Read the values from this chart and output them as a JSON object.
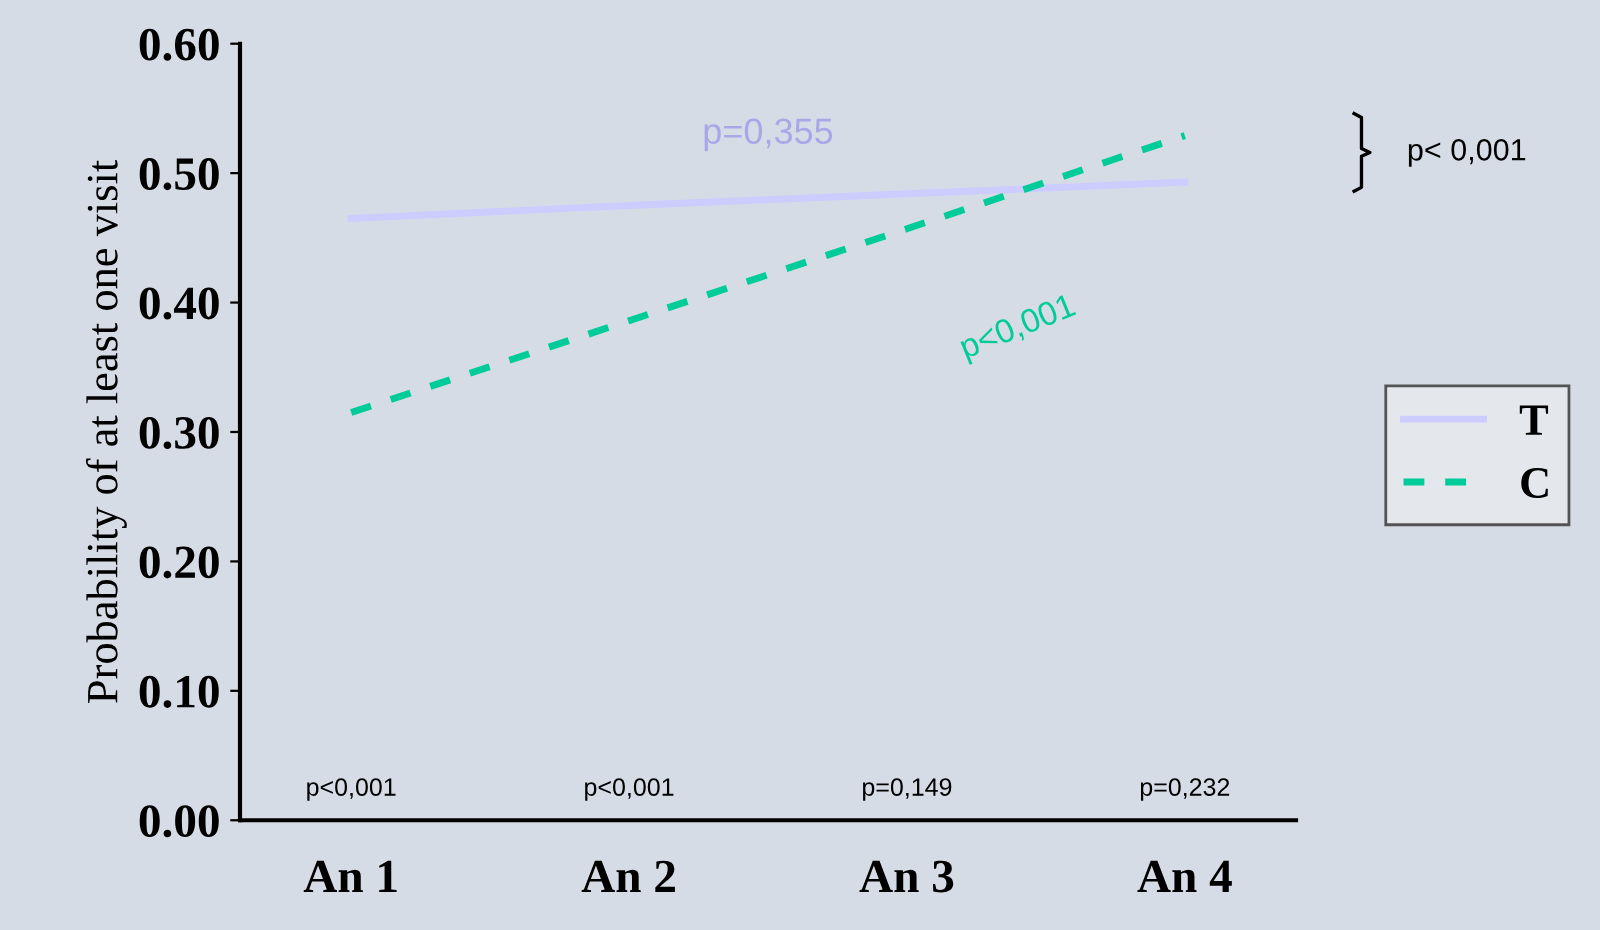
{
  "chart_data": {
    "type": "line",
    "ylabel": "Probability of at least one visit",
    "categories": [
      "An 1",
      "An 2",
      "An 3",
      "An 4"
    ],
    "series": [
      {
        "name": "T",
        "color": "#ccccff",
        "values": [
          0.465,
          0.475,
          0.484,
          0.493
        ],
        "line_style": "solid"
      },
      {
        "name": "C",
        "color": "#00cc99",
        "values": [
          0.315,
          0.386,
          0.457,
          0.529
        ],
        "line_style": "dashed"
      }
    ],
    "ylim": [
      0,
      0.6
    ],
    "yticks": [
      {
        "value": 0,
        "label": "0.00"
      },
      {
        "value": 0.1,
        "label": "0.10"
      },
      {
        "value": 0.2,
        "label": "0.20"
      },
      {
        "value": 0.3,
        "label": "0.30"
      },
      {
        "value": 0.4,
        "label": "0.40"
      },
      {
        "value": 0.5,
        "label": "0.50"
      },
      {
        "value": 0.6,
        "label": "0.60"
      }
    ],
    "legend": "right",
    "grid": false,
    "marker": "none",
    "annotations": [
      "p<0,001",
      "p<0,001",
      "p=0,149",
      "p=0,232",
      "p=0,355",
      "p<0,001",
      "p< 0,001"
    ]
  }
}
